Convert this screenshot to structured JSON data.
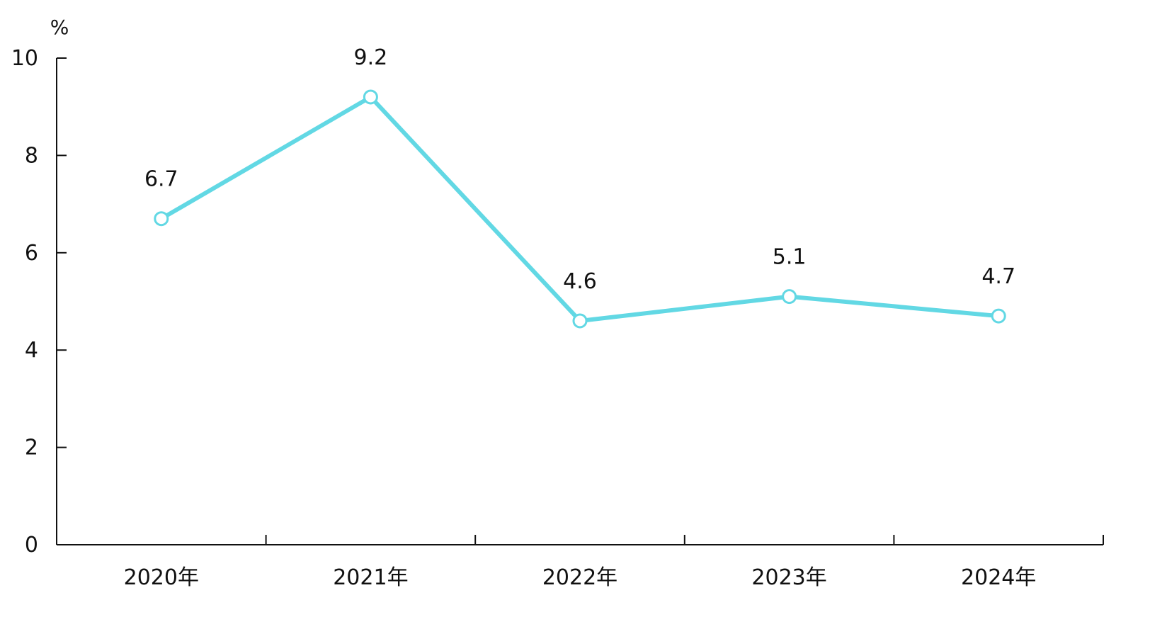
{
  "chart_data": {
    "type": "line",
    "title": "",
    "xlabel": "",
    "ylabel": "%",
    "categories": [
      "2020年",
      "2021年",
      "2022年",
      "2023年",
      "2024年"
    ],
    "series": [
      {
        "values": [
          6.7,
          9.2,
          4.6,
          5.1,
          4.7
        ],
        "data_labels": [
          "6.7",
          "9.2",
          "4.6",
          "5.1",
          "4.7"
        ],
        "color": "#62d8e4"
      }
    ],
    "y_ticks": [
      0,
      2,
      4,
      6,
      8,
      10
    ],
    "y_tick_labels": [
      "0",
      "2",
      "4",
      "6",
      "8",
      "10"
    ],
    "ylim": [
      0,
      10
    ],
    "grid": false,
    "legend": "none",
    "axis_color": "#111111"
  }
}
